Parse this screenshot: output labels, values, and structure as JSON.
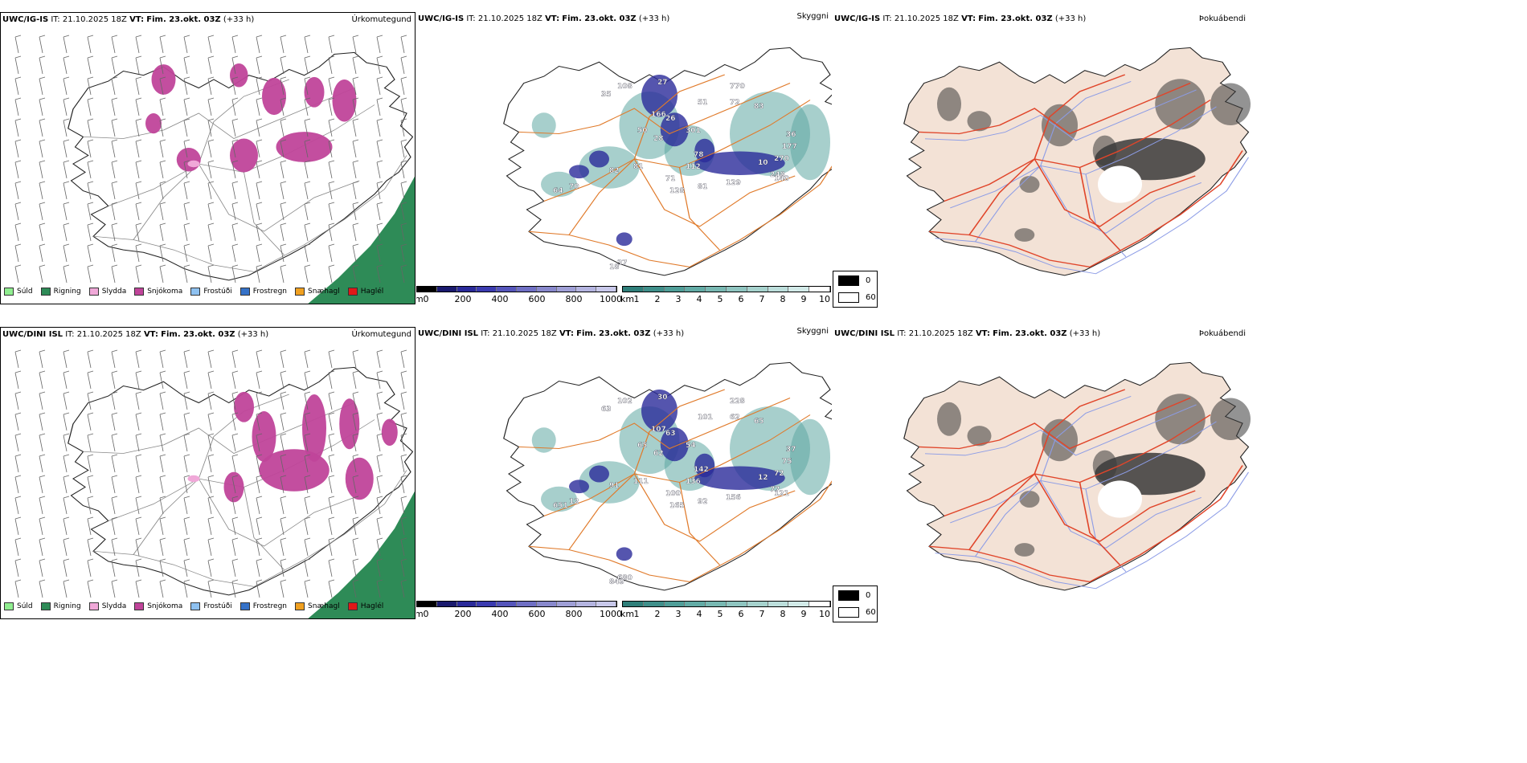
{
  "rows": [
    {
      "precip": {
        "model": "UWC/IG-IS",
        "it_label": "IT:",
        "it_value": "21.10.2025 18Z",
        "vt_label": "VT:",
        "vt_value": "Fim. 23.okt. 03Z",
        "lead": "(+33 h)",
        "field": "Úrkomutegund"
      },
      "vis": {
        "model": "UWC/IG-IS",
        "it_label": "IT:",
        "it_value": "21.10.2025 18Z",
        "vt_label": "VT:",
        "vt_value": "Fim. 23.okt. 03Z",
        "lead": "(+33 h)",
        "field": "Skyggni",
        "labels": [
          "108",
          "27",
          "166",
          "26",
          "50",
          "28",
          "35",
          "301",
          "51",
          "78",
          "112",
          "81",
          "82",
          "71",
          "128",
          "81",
          "129",
          "10",
          "140",
          "177",
          "270",
          "248",
          "36",
          "70",
          "64",
          "37",
          "18",
          "770",
          "72",
          "83"
        ]
      },
      "fog": {
        "model": "UWC/IG-IS",
        "it_label": "IT:",
        "it_value": "21.10.2025 18Z",
        "vt_label": "VT:",
        "vt_value": "Fim. 23.okt. 03Z",
        "lead": "(+33 h)",
        "field": "Þokuábendi"
      }
    },
    {
      "precip": {
        "model": "UWC/DINI ISL",
        "it_label": "IT:",
        "it_value": "21.10.2025 18Z",
        "vt_label": "VT:",
        "vt_value": "Fim. 23.okt. 03Z",
        "lead": "(+33 h)",
        "field": "Úrkomutegund"
      },
      "vis": {
        "model": "UWC/DINI ISL",
        "it_label": "IT:",
        "it_value": "21.10.2025 18Z",
        "vt_label": "VT:",
        "vt_value": "Fim. 23.okt. 03Z",
        "lead": "(+33 h)",
        "field": "Skyggni",
        "labels": [
          "102",
          "30",
          "107",
          "63",
          "65",
          "62",
          "63",
          "54",
          "101",
          "142",
          "136",
          "111",
          "91",
          "100",
          "165",
          "92",
          "156",
          "12",
          "121",
          "75",
          "72",
          "77",
          "37",
          "12",
          "651",
          "680",
          "849",
          "228",
          "62",
          "65"
        ]
      },
      "fog": {
        "model": "UWC/DINI ISL",
        "it_label": "IT:",
        "it_value": "21.10.2025 18Z",
        "vt_label": "VT:",
        "vt_value": "Fim. 23.okt. 03Z",
        "lead": "(+33 h)",
        "field": "Þokuábendi"
      }
    }
  ],
  "precip_legend": [
    {
      "label": "Súld",
      "color": "#90ee90"
    },
    {
      "label": "Rigning",
      "color": "#2e8b57"
    },
    {
      "label": "Slydda",
      "color": "#f0a8d8"
    },
    {
      "label": "Snjókoma",
      "color": "#c0449a"
    },
    {
      "label": "Frostúði",
      "color": "#8ec1f0"
    },
    {
      "label": "Frostregn",
      "color": "#3572c8"
    },
    {
      "label": "Snæhagl",
      "color": "#f0a020"
    },
    {
      "label": "Haglél",
      "color": "#e01818"
    }
  ],
  "ceiling_bar": {
    "unit": "m",
    "ticks": [
      "0",
      "200",
      "400",
      "600",
      "800",
      "1000"
    ],
    "colors": [
      "#000000",
      "#1a1a6e",
      "#2a2a9a",
      "#3b3bb0",
      "#5555bb",
      "#6f6fc4",
      "#8888cc",
      "#9f9fd6",
      "#b4b4e0",
      "#c8c8ea"
    ]
  },
  "visibility_bar": {
    "unit": "km",
    "ticks": [
      "1",
      "2",
      "3",
      "4",
      "5",
      "6",
      "7",
      "8",
      "9",
      "10"
    ],
    "colors": [
      "#2f7f7a",
      "#3f8f8a",
      "#4f9e98",
      "#62aba5",
      "#78b8b2",
      "#8fc5c0",
      "#a6d2cd",
      "#bcdedb",
      "#d2eae8",
      "#ffffff"
    ]
  },
  "fog_legend": {
    "high": "0",
    "low": "60",
    "high_color": "#000000",
    "low_color": "#ffffff"
  },
  "colors": {
    "snow": "#c0449a",
    "rain": "#2e8b57",
    "sleet": "#f0a8d8",
    "roads": "#e07a2a",
    "fog_land": "#f3e2d6",
    "fog_roads": "#e0452a",
    "rivers": "#8c9ce6"
  }
}
